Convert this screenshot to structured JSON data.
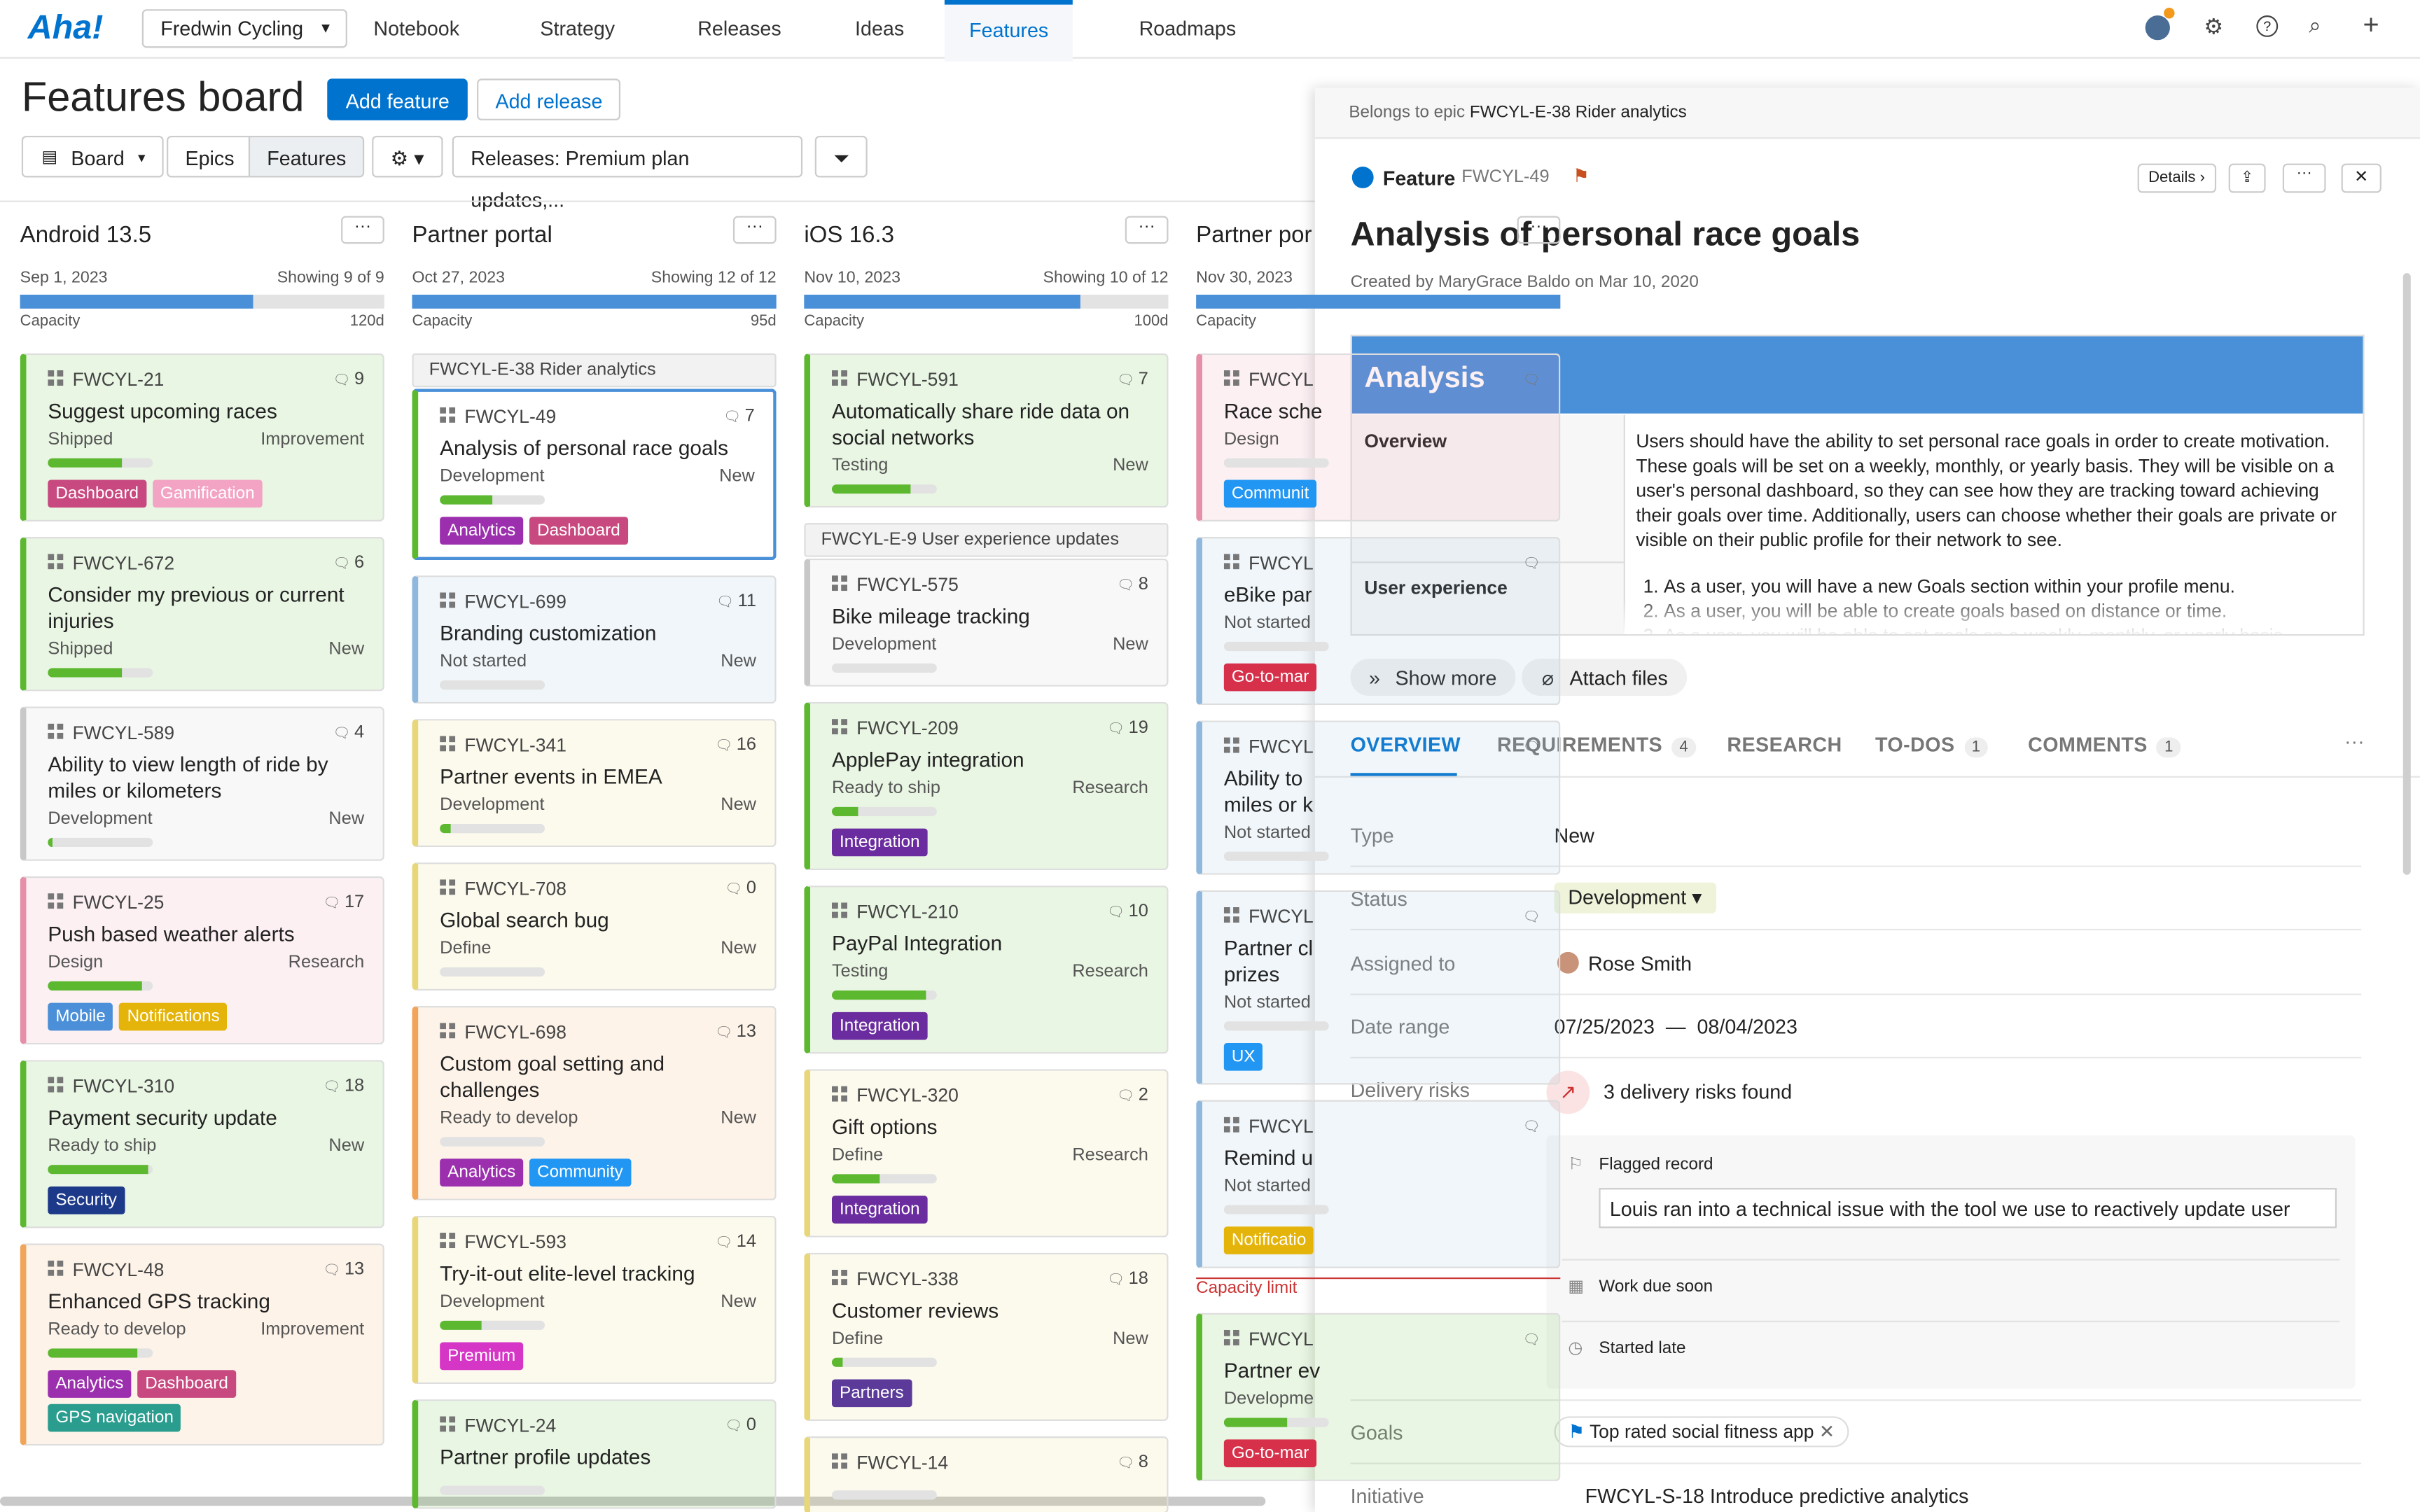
{
  "nav": {
    "logo": "Aha!",
    "workspace": "Fredwin Cycling",
    "items": [
      "Notebook",
      "Strategy",
      "Releases",
      "Ideas",
      "Features",
      "Roadmaps"
    ],
    "active": 4
  },
  "header": {
    "title": "Features board",
    "add_feature": "Add feature",
    "add_release": "Add release",
    "view": "Board",
    "toggle": [
      "Epics",
      "Features"
    ],
    "releases": "Releases: Premium plan updates,..."
  },
  "columns": [
    {
      "name": "Android 13.5",
      "date": "Sep 1, 2023",
      "showing": "Showing 9 of 9",
      "capacity": "Capacity",
      "days": "120d",
      "capacity_used": 0.64,
      "items": [
        {
          "id": "FWCYL-21",
          "title": "Suggest upcoming races",
          "status": "Shipped",
          "kind": "Improvement",
          "comments": 9,
          "progress": 0.7,
          "color": "#5cb82e",
          "tags": [
            {
              "name": "Dashboard",
              "color": "#c8497f"
            },
            {
              "name": "Gamification",
              "color": "#f3a3c3"
            }
          ]
        },
        {
          "id": "FWCYL-672",
          "title": "Consider my previous or current injuries",
          "status": "Shipped",
          "kind": "New",
          "comments": 6,
          "progress": 0.7,
          "color": "#5cb82e",
          "tags": []
        },
        {
          "id": "FWCYL-589",
          "title": "Ability to view length of ride by miles or kilometers",
          "status": "Development",
          "kind": "New",
          "comments": 4,
          "progress": 0.05,
          "color": "#c8c8c8",
          "tags": []
        },
        {
          "id": "FWCYL-25",
          "title": "Push based weather alerts",
          "status": "Design",
          "kind": "Research",
          "comments": 17,
          "progress": 0.9,
          "color": "#e58fa8",
          "tags": [
            {
              "name": "Mobile",
              "color": "#4a8fd8"
            },
            {
              "name": "Notifications",
              "color": "#e5b40a"
            }
          ]
        },
        {
          "id": "FWCYL-310",
          "title": "Payment security update",
          "status": "Ready to ship",
          "kind": "New",
          "comments": 18,
          "progress": 0.95,
          "color": "#5cb82e",
          "tags": [
            {
              "name": "Security",
              "color": "#1d3a8a"
            }
          ]
        },
        {
          "id": "FWCYL-48",
          "title": "Enhanced GPS tracking",
          "status": "Ready to develop",
          "kind": "Improvement",
          "comments": 13,
          "progress": 0.85,
          "color": "#f0a55a",
          "tags": [
            {
              "name": "Analytics",
              "color": "#9b2fae"
            },
            {
              "name": "Dashboard",
              "color": "#c8497f"
            },
            {
              "name": "GPS navigation",
              "color": "#2a9d8f"
            }
          ]
        }
      ]
    },
    {
      "name": "Partner portal",
      "date": "Oct 27, 2023",
      "showing": "Showing 12 of 12",
      "capacity": "Capacity",
      "days": "95d",
      "capacity_used": 1.0,
      "items": [
        {
          "epic": "FWCYL-E-38 Rider analytics"
        },
        {
          "id": "FWCYL-49",
          "title": "Analysis of personal race goals",
          "status": "Development",
          "kind": "New",
          "comments": 7,
          "progress": 0.5,
          "color": "#5cb82e",
          "selected": true,
          "tags": [
            {
              "name": "Analytics",
              "color": "#9b2fae"
            },
            {
              "name": "Dashboard",
              "color": "#c8497f"
            }
          ]
        },
        {
          "id": "FWCYL-699",
          "title": "Branding customization",
          "status": "Not started",
          "kind": "New",
          "comments": 11,
          "progress": 0,
          "color": "#8fb8dc",
          "tags": []
        },
        {
          "id": "FWCYL-341",
          "title": "Partner events in EMEA",
          "status": "Development",
          "kind": "New",
          "comments": 16,
          "progress": 0.1,
          "color": "#e8d77a",
          "tags": []
        },
        {
          "id": "FWCYL-708",
          "title": "Global search bug",
          "status": "Define",
          "kind": "New",
          "comments": 0,
          "progress": 0,
          "color": "#e8d77a",
          "tags": []
        },
        {
          "id": "FWCYL-698",
          "title": "Custom goal setting and challenges",
          "status": "Ready to develop",
          "kind": "New",
          "comments": 13,
          "progress": 0,
          "color": "#f0a55a",
          "tags": [
            {
              "name": "Analytics",
              "color": "#9b2fae"
            },
            {
              "name": "Community",
              "color": "#2196f3"
            }
          ]
        },
        {
          "id": "FWCYL-593",
          "title": "Try-it-out elite-level tracking",
          "status": "Development",
          "kind": "New",
          "comments": 14,
          "progress": 0.4,
          "color": "#e8d77a",
          "tags": [
            {
              "name": "Premium",
              "color": "#d636c6"
            }
          ]
        },
        {
          "id": "FWCYL-24",
          "title": "Partner profile updates",
          "status": "",
          "kind": "",
          "comments": 0,
          "progress": 0,
          "color": "#5cb82e",
          "tags": []
        }
      ]
    },
    {
      "name": "iOS 16.3",
      "date": "Nov 10, 2023",
      "showing": "Showing 10 of 12",
      "capacity": "Capacity",
      "days": "100d",
      "capacity_used": 0.76,
      "items": [
        {
          "id": "FWCYL-591",
          "title": "Automatically share ride data on social networks",
          "status": "Testing",
          "kind": "New",
          "comments": 7,
          "progress": 0.75,
          "color": "#5cb82e",
          "tags": []
        },
        {
          "epic": "FWCYL-E-9 User experience updates"
        },
        {
          "id": "FWCYL-575",
          "title": "Bike mileage tracking",
          "status": "Development",
          "kind": "New",
          "comments": 8,
          "progress": 0,
          "color": "#c8c8c8",
          "tags": []
        },
        {
          "id": "FWCYL-209",
          "title": "ApplePay integration",
          "status": "Ready to ship",
          "kind": "Research",
          "comments": 19,
          "progress": 0.25,
          "color": "#5cb82e",
          "tags": [
            {
              "name": "Integration",
              "color": "#6a2c9e"
            }
          ]
        },
        {
          "id": "FWCYL-210",
          "title": "PayPal Integration",
          "status": "Testing",
          "kind": "Research",
          "comments": 10,
          "progress": 0.9,
          "color": "#5cb82e",
          "tags": [
            {
              "name": "Integration",
              "color": "#6a2c9e"
            }
          ]
        },
        {
          "id": "FWCYL-320",
          "title": "Gift options",
          "status": "Define",
          "kind": "Research",
          "comments": 2,
          "progress": 0.45,
          "color": "#e8d77a",
          "tags": [
            {
              "name": "Integration",
              "color": "#6a2c9e"
            }
          ]
        },
        {
          "id": "FWCYL-338",
          "title": "Customer reviews",
          "status": "Define",
          "kind": "New",
          "comments": 18,
          "progress": 0.1,
          "color": "#e8d77a",
          "tags": [
            {
              "name": "Partners",
              "color": "#5b3a9a"
            }
          ]
        },
        {
          "id": "FWCYL-14",
          "title": "",
          "status": "",
          "kind": "",
          "comments": 8,
          "progress": 0,
          "color": "#e8d77a",
          "tags": []
        }
      ]
    },
    {
      "name": "Partner por",
      "date": "Nov 30, 2023",
      "showing": "",
      "capacity": "Capacity",
      "days": "",
      "capacity_used": 1.0,
      "items": [
        {
          "id": "FWCYL",
          "title": "Race sche",
          "status": "Design",
          "kind": "",
          "comments": "",
          "progress": 0,
          "color": "#e58fa8",
          "tags": [
            {
              "name": "Communit",
              "color": "#2196f3"
            }
          ]
        },
        {
          "id": "FWCYL",
          "title": "eBike par",
          "status": "Not started",
          "kind": "",
          "comments": "",
          "progress": 0,
          "color": "#8fb8dc",
          "tags": [
            {
              "name": "Go-to-mar",
              "color": "#d6304a"
            }
          ]
        },
        {
          "id": "FWCYL",
          "title": "Ability to\nmiles or k",
          "status": "Not started",
          "kind": "",
          "comments": "",
          "progress": 0,
          "color": "#8fb8dc",
          "tags": []
        },
        {
          "id": "FWCYL",
          "title": "Partner cl\nprizes",
          "status": "Not started",
          "kind": "",
          "comments": "",
          "progress": 0,
          "color": "#8fb8dc",
          "tags": [
            {
              "name": "UX",
              "color": "#2196f3"
            }
          ]
        },
        {
          "id": "FWCYL",
          "title": "Remind u",
          "status": "Not started",
          "kind": "",
          "comments": "",
          "progress": 0,
          "color": "#8fb8dc",
          "tags": [
            {
              "name": "Notificatio",
              "color": "#e5b40a"
            }
          ]
        },
        {
          "limit": "Capacity limit"
        },
        {
          "id": "FWCYL",
          "title": "Partner ev",
          "status": "Developme",
          "kind": "",
          "comments": "",
          "progress": 0.6,
          "color": "#5cb82e",
          "tags": [
            {
              "name": "Go-to-mar",
              "color": "#d6304a"
            }
          ]
        }
      ]
    }
  ],
  "drawer": {
    "epic_prefix": "Belongs to epic",
    "epic": "FWCYL-E-38 Rider analytics",
    "kind": "Feature",
    "id": "FWCYL-49",
    "details": "Details",
    "title": "Analysis of personal race goals",
    "created": "Created by MaryGrace Baldo on Mar 10, 2020",
    "section": "Analysis",
    "overview_label": "Overview",
    "overview": "Users should have the ability to set personal race goals in order to create motivation. These goals will be set on a weekly, monthly, or yearly basis. They will be visible on a user's personal dashboard, so they can see how they are tracking toward achieving their goals over time. Additionally, users can choose whether their goals are private or visible on their public profile for their network to see.",
    "ux_label": "User experience",
    "ux": [
      "As a user, you will have a new Goals section within your profile menu.",
      "As a user, you will be able to create goals based on distance or time.",
      "As a user, you will be able to set goals on a weekly, monthly, or yearly basis."
    ],
    "show_more": "Show more",
    "attach": "Attach files",
    "tabs": [
      {
        "name": "OVERVIEW"
      },
      {
        "name": "REQUIREMENTS",
        "count": 4
      },
      {
        "name": "RESEARCH"
      },
      {
        "name": "TO-DOS",
        "count": 1
      },
      {
        "name": "COMMENTS",
        "count": 1
      }
    ],
    "fields": {
      "type_label": "Type",
      "type": "New",
      "status_label": "Status",
      "status": "Development",
      "assigned_label": "Assigned to",
      "assigned": "Rose Smith",
      "date_label": "Date range",
      "date_start": "07/25/2023",
      "date_sep": "—",
      "date_end": "08/04/2023",
      "risks_label": "Delivery risks",
      "risks": "3 delivery risks found",
      "flagged": "Flagged record",
      "flag_note": "Louis ran into a technical issue with the tool we use to reactively update user",
      "due": "Work due soon",
      "late": "Started late",
      "goals_label": "Goals",
      "goal": "Top rated social fitness app",
      "initiative_label": "Initiative",
      "initiative": "FWCYL-S-18 Introduce predictive analytics"
    }
  }
}
